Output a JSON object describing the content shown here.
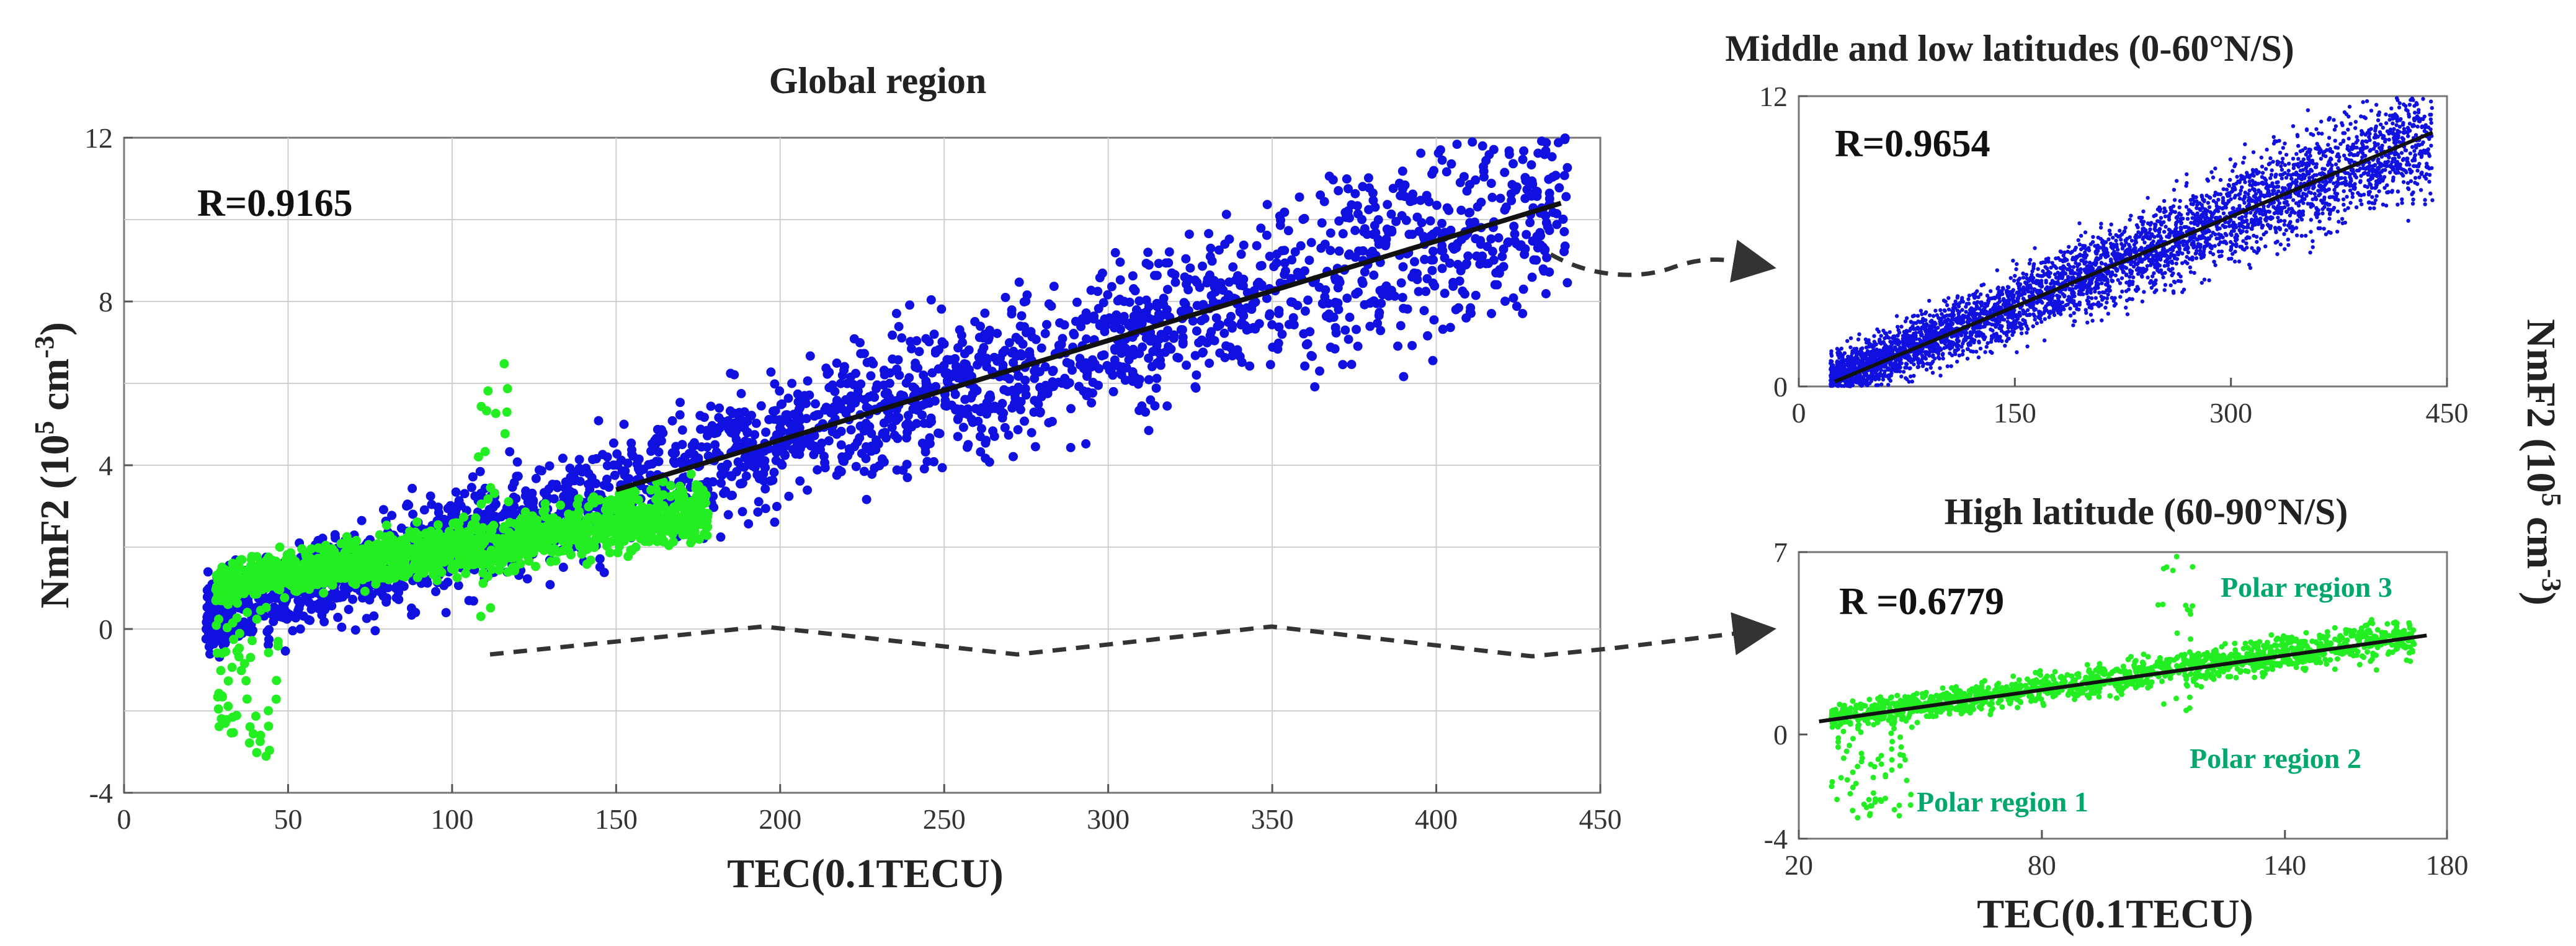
{
  "colors": {
    "blue": "#1010e0",
    "green": "#22ee22",
    "fit": "#111111",
    "annotation": "#00a86b",
    "arrow": "#333333"
  },
  "chart_data": [
    {
      "id": "global",
      "type": "scatter",
      "title": "Global region",
      "xlabel": "TEC(0.1TECU)",
      "ylabel": "NmF2 (10^5 cm^-3)",
      "ylabel_parts": [
        "NmF2 (10",
        "5",
        " cm",
        "-3",
        ")"
      ],
      "xlim": [
        0,
        450
      ],
      "ylim": [
        -4,
        12
      ],
      "xticks": [
        0,
        50,
        100,
        150,
        200,
        250,
        300,
        350,
        400,
        450
      ],
      "yticks": [
        -4,
        0,
        4,
        8,
        12
      ],
      "r_label": "R=0.9165",
      "fit_line": {
        "x": [
          150,
          438
        ],
        "y": [
          3.4,
          10.4
        ]
      },
      "series": [
        {
          "name": "Middle and low latitudes",
          "color": "blue",
          "point_count": 2600,
          "x_range": [
            25,
            440
          ],
          "slope": 0.0245,
          "intercept": -0.3,
          "noise": 1.0
        },
        {
          "name": "High latitude",
          "color": "green",
          "point_count": 1500,
          "x_range": [
            28,
            178
          ],
          "slope": 0.012,
          "intercept": 0.75,
          "noise": 0.5
        }
      ]
    },
    {
      "id": "mid_low",
      "type": "scatter",
      "title": "Middle and low latitudes (0-60°N/S)",
      "xlim": [
        0,
        450
      ],
      "ylim": [
        0,
        12
      ],
      "xticks": [
        0,
        150,
        300,
        450
      ],
      "yticks": [
        0,
        12
      ],
      "r_label": "R=0.9654",
      "fit_line": {
        "x": [
          25,
          440
        ],
        "y": [
          0.2,
          10.5
        ]
      },
      "series": [
        {
          "name": "Middle and low latitudes",
          "color": "blue",
          "point_count": 4500,
          "x_range": [
            22,
            440
          ],
          "slope": 0.0245,
          "intercept": -0.3,
          "noise": 1.0
        }
      ]
    },
    {
      "id": "high",
      "type": "scatter",
      "title": "High latitude (60-90°N/S)",
      "xlabel": "TEC(0.1TECU)",
      "xlim": [
        20,
        180
      ],
      "ylim": [
        -4,
        7
      ],
      "xticks": [
        20,
        80,
        140,
        180
      ],
      "yticks": [
        -4,
        0,
        7
      ],
      "r_label": "R =0.6779",
      "fit_line": {
        "x": [
          25,
          175
        ],
        "y": [
          0.5,
          3.8
        ]
      },
      "annotations": [
        "Polar region 3",
        "Polar region 2",
        "Polar region 1"
      ],
      "series": [
        {
          "name": "High latitude",
          "color": "green",
          "point_count": 1500,
          "x_range": [
            28,
            172
          ],
          "slope": 0.022,
          "intercept": 0.0,
          "noise": 0.5
        }
      ]
    }
  ],
  "right_ylabel_parts": [
    "NmF2 (10",
    "5",
    " cm",
    "-3",
    ")"
  ]
}
